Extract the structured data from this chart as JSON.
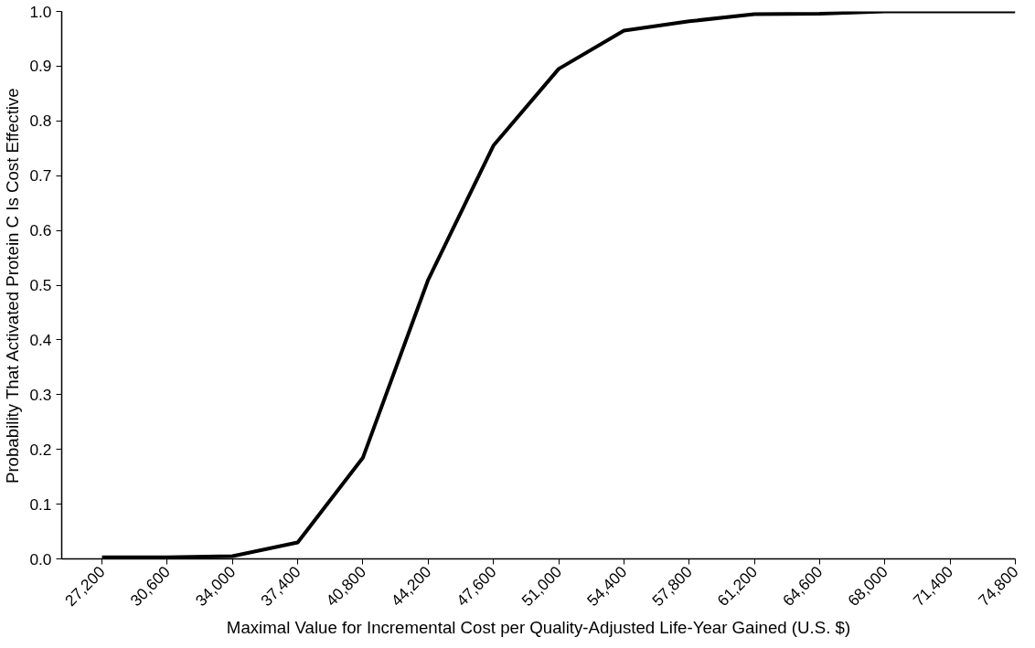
{
  "chart_data": {
    "type": "line",
    "xlabel": "Maximal Value for Incremental Cost per Quality-Adjusted Life-Year Gained (U.S. $)",
    "ylabel": "Probability That Activated Protein C Is Cost Effective",
    "x": [
      27200,
      30600,
      34000,
      37400,
      40800,
      44200,
      47600,
      51000,
      54400,
      57800,
      61200,
      64600,
      68000,
      71400,
      74800
    ],
    "series": [
      {
        "color": "#000000",
        "values": [
          0.003,
          0.003,
          0.005,
          0.03,
          0.185,
          0.51,
          0.755,
          0.895,
          0.965,
          0.982,
          0.995,
          0.996,
          1.0,
          1.0,
          1.0
        ]
      }
    ],
    "xlim": [
      25100,
      74800
    ],
    "ylim": [
      0,
      1.0
    ],
    "xticks": [
      {
        "value": 27200,
        "label": "27,200"
      },
      {
        "value": 30600,
        "label": "30,600"
      },
      {
        "value": 34000,
        "label": "34,000"
      },
      {
        "value": 37400,
        "label": "37,400"
      },
      {
        "value": 40800,
        "label": "40,800"
      },
      {
        "value": 44200,
        "label": "44,200"
      },
      {
        "value": 47600,
        "label": "47,600"
      },
      {
        "value": 51000,
        "label": "51,000"
      },
      {
        "value": 54400,
        "label": "54,400"
      },
      {
        "value": 57800,
        "label": "57,800"
      },
      {
        "value": 61200,
        "label": "61,200"
      },
      {
        "value": 64600,
        "label": "64,600"
      },
      {
        "value": 68000,
        "label": "68,000"
      },
      {
        "value": 71400,
        "label": "71,400"
      },
      {
        "value": 74800,
        "label": "74,800"
      }
    ],
    "yticks": [
      {
        "value": 0,
        "label": "0.0"
      },
      {
        "value": 0.1,
        "label": "0.1"
      },
      {
        "value": 0.2,
        "label": "0.2"
      },
      {
        "value": 0.3,
        "label": "0.3"
      },
      {
        "value": 0.4,
        "label": "0.4"
      },
      {
        "value": 0.5,
        "label": "0.5"
      },
      {
        "value": 0.6,
        "label": "0.6"
      },
      {
        "value": 0.7,
        "label": "0.7"
      },
      {
        "value": 0.8,
        "label": "0.8"
      },
      {
        "value": 0.9,
        "label": "0.9"
      },
      {
        "value": 1.0,
        "label": "1.0"
      }
    ],
    "grid": false,
    "marker": "none",
    "line_style": "solid"
  }
}
